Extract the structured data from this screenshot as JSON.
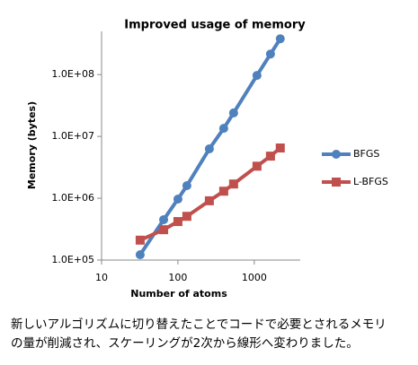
{
  "chart_data": {
    "type": "line",
    "title": "Improved usage of memory",
    "x_label": "Number of atoms",
    "y_label": "Memory (bytes)",
    "x": [
      32,
      65,
      100,
      131,
      258,
      398,
      536,
      1085,
      1630,
      2190
    ],
    "series": [
      {
        "name": "BFGS",
        "color": "#4f81bd",
        "marker": "circle",
        "values": [
          122000,
          450000,
          970000,
          1600000,
          6300000,
          13500000,
          24000000,
          97000000,
          215000000,
          380000000
        ]
      },
      {
        "name": "L-BFGS",
        "color": "#c0504d",
        "marker": "square",
        "values": [
          210000,
          310000,
          420000,
          510000,
          910000,
          1300000,
          1700000,
          3300000,
          4800000,
          6500000
        ]
      }
    ],
    "xscale": "log",
    "yscale": "log",
    "xlim": [
      10,
      4000
    ],
    "ylim": [
      100000,
      500000000
    ],
    "xticks": [
      10,
      100,
      1000
    ],
    "yticks": [
      {
        "value": 100000,
        "label": "1.0E+05"
      },
      {
        "value": 1000000,
        "label": "1.0E+06"
      },
      {
        "value": 10000000,
        "label": "1.0E+07"
      },
      {
        "value": 100000000,
        "label": "1.0E+08"
      }
    ],
    "grid": false,
    "legend": "right"
  },
  "caption": [
    "新しいアルゴリズムに切り替えたことでコードで必要とされるメモリ",
    "の量が削減され、スケーリングが2次から線形へ変わりました。"
  ]
}
